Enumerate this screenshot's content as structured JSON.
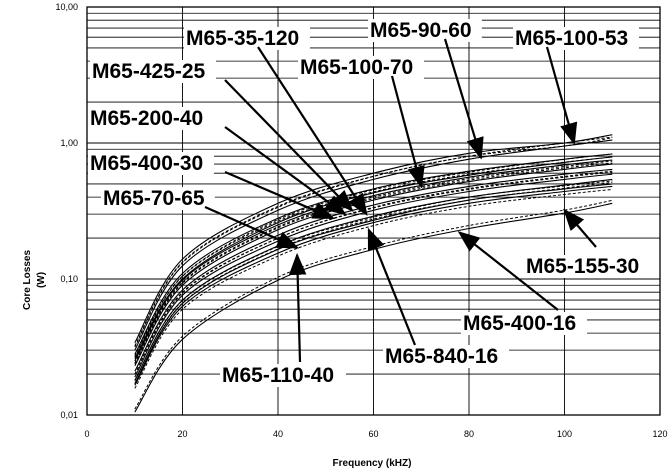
{
  "chart_data": {
    "type": "line",
    "title": "",
    "xlabel": "Frequency (kHZ)",
    "ylabel": "Core Losses (W)",
    "ylabel_lines": [
      "Core Losses",
      "(W)"
    ],
    "xlim": [
      0,
      120
    ],
    "ylim": [
      0.01,
      10
    ],
    "yscale": "log",
    "grid": true,
    "x_ticks": [
      0,
      20,
      40,
      60,
      80,
      100,
      120
    ],
    "x_tick_labels": [
      "0",
      "20",
      "40",
      "60",
      "80",
      "100",
      "120"
    ],
    "y_ticks": [
      0.01,
      0.1,
      1,
      10
    ],
    "y_tick_labels": [
      "0,01",
      "0,10",
      "1,00",
      "10,00"
    ],
    "line_color": "#000000",
    "series": [
      {
        "name": "M65-100-53",
        "x": [
          10,
          20,
          40,
          60,
          80,
          100,
          110
        ],
        "y": [
          0.034,
          0.14,
          0.36,
          0.6,
          0.84,
          1.0,
          1.15
        ]
      },
      {
        "name": "M65-90-60",
        "x": [
          10,
          20,
          40,
          60,
          80,
          100,
          110
        ],
        "y": [
          0.03,
          0.125,
          0.32,
          0.54,
          0.76,
          0.95,
          1.05
        ]
      },
      {
        "name": "M65-35-120",
        "x": [
          10,
          20,
          40,
          60,
          80,
          100,
          110
        ],
        "y": [
          0.028,
          0.11,
          0.28,
          0.46,
          0.62,
          0.76,
          0.83
        ]
      },
      {
        "name": "M65-425-25",
        "x": [
          10,
          20,
          40,
          60,
          80,
          100,
          110
        ],
        "y": [
          0.026,
          0.1,
          0.26,
          0.43,
          0.58,
          0.72,
          0.79
        ]
      },
      {
        "name": "M65-100-70",
        "x": [
          10,
          20,
          40,
          60,
          80,
          100,
          110
        ],
        "y": [
          0.025,
          0.098,
          0.25,
          0.41,
          0.56,
          0.69,
          0.75
        ]
      },
      {
        "name": "M65-200-40",
        "x": [
          10,
          20,
          40,
          60,
          80,
          100,
          110
        ],
        "y": [
          0.023,
          0.09,
          0.23,
          0.38,
          0.52,
          0.64,
          0.7
        ]
      },
      {
        "name": "M65-400-30",
        "x": [
          10,
          20,
          40,
          60,
          80,
          100,
          110
        ],
        "y": [
          0.021,
          0.083,
          0.21,
          0.35,
          0.48,
          0.59,
          0.64
        ]
      },
      {
        "name": "M65-70-65",
        "x": [
          10,
          20,
          40,
          60,
          80,
          100,
          110
        ],
        "y": [
          0.019,
          0.076,
          0.19,
          0.32,
          0.44,
          0.54,
          0.59
        ]
      },
      {
        "name": "M65-110-40",
        "x": [
          10,
          20,
          40,
          60,
          80,
          100,
          110
        ],
        "y": [
          0.018,
          0.07,
          0.175,
          0.29,
          0.4,
          0.49,
          0.54
        ]
      },
      {
        "name": "M65-840-16",
        "x": [
          10,
          20,
          40,
          60,
          80,
          100,
          110
        ],
        "y": [
          0.017,
          0.066,
          0.165,
          0.27,
          0.38,
          0.46,
          0.5
        ]
      },
      {
        "name": "M65-400-16",
        "x": [
          10,
          20,
          40,
          60,
          80,
          100,
          110
        ],
        "y": [
          0.0165,
          0.063,
          0.155,
          0.26,
          0.36,
          0.44,
          0.48
        ]
      },
      {
        "name": "M65-155-30",
        "x": [
          10,
          20,
          40,
          60,
          80,
          100,
          110
        ],
        "y": [
          0.0105,
          0.036,
          0.098,
          0.165,
          0.235,
          0.305,
          0.36
        ]
      }
    ],
    "annotations": [
      {
        "text": "M65-35-120",
        "points_to": {
          "x": 58.5,
          "y": 0.3
        }
      },
      {
        "text": "M65-90-60",
        "points_to": {
          "x": 82.5,
          "y": 0.78
        }
      },
      {
        "text": "M65-100-53",
        "points_to": {
          "x": 102,
          "y": 1.0
        }
      },
      {
        "text": "M65-425-25",
        "points_to": {
          "x": 55.5,
          "y": 0.32
        }
      },
      {
        "text": "M65-100-70",
        "points_to": {
          "x": 70,
          "y": 0.48
        }
      },
      {
        "text": "M65-200-40",
        "points_to": {
          "x": 54,
          "y": 0.3
        }
      },
      {
        "text": "M65-400-30",
        "points_to": {
          "x": 51.5,
          "y": 0.28
        }
      },
      {
        "text": "M65-70-65",
        "points_to": {
          "x": 44,
          "y": 0.17
        }
      },
      {
        "text": "M65-155-30",
        "points_to": {
          "x": 100,
          "y": 0.32
        }
      },
      {
        "text": "M65-400-16",
        "points_to": {
          "x": 78,
          "y": 0.22
        }
      },
      {
        "text": "M65-840-16",
        "points_to": {
          "x": 59,
          "y": 0.23
        }
      },
      {
        "text": "M65-110-40",
        "points_to": {
          "x": 44,
          "y": 0.15
        }
      }
    ]
  }
}
